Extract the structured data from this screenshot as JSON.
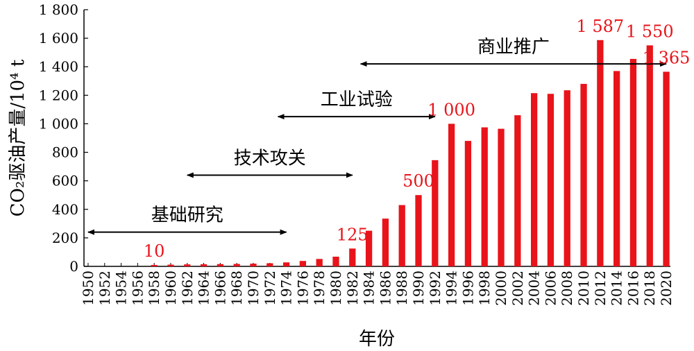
{
  "chart_data": {
    "type": "bar",
    "xlabel": "年份",
    "ylabel": "CO₂驱油产量/10⁴ t",
    "ylim": [
      0,
      1800
    ],
    "yticks": [
      0,
      200,
      400,
      600,
      800,
      1000,
      1200,
      1400,
      1600,
      1800
    ],
    "ytick_labels": [
      "0",
      "200",
      "400",
      "600",
      "800",
      "1 000",
      "1 200",
      "1 400",
      "1 600",
      "1 800"
    ],
    "categories": [
      "1950",
      "1951",
      "1952",
      "1953",
      "1954",
      "1955",
      "1956",
      "1957",
      "1958",
      "1959",
      "1960",
      "1961",
      "1962",
      "1963",
      "1964",
      "1965",
      "1966",
      "1967",
      "1968",
      "1969",
      "1970",
      "1971",
      "1972",
      "1973",
      "1974",
      "1975",
      "1976",
      "1977",
      "1978",
      "1979",
      "1980",
      "1981",
      "1982",
      "1983",
      "1984",
      "1985",
      "1986",
      "1987",
      "1988",
      "1989",
      "1990",
      "1991",
      "1992",
      "1993",
      "1994",
      "1995",
      "1996",
      "1997",
      "1998",
      "1999",
      "2000",
      "2001",
      "2002",
      "2003",
      "2004",
      "2005",
      "2006",
      "2007",
      "2008",
      "2009",
      "2010",
      "2011",
      "2012",
      "2013",
      "2014",
      "2015",
      "2016",
      "2017",
      "2018",
      "2019",
      "2020"
    ],
    "xtick_labels": [
      "1950",
      "1952",
      "1954",
      "1956",
      "1958",
      "1960",
      "1962",
      "1964",
      "1966",
      "1968",
      "1970",
      "1972",
      "1974",
      "1976",
      "1978",
      "1980",
      "1982",
      "1984",
      "1986",
      "1988",
      "1990",
      "1992",
      "1994",
      "1996",
      "1998",
      "2000",
      "2002",
      "2004",
      "2006",
      "2008",
      "2010",
      "2012",
      "2014",
      "2016",
      "2018",
      "2020"
    ],
    "bars": [
      {
        "year": "1958",
        "value": 10
      },
      {
        "year": "1960",
        "value": 12
      },
      {
        "year": "1962",
        "value": 14
      },
      {
        "year": "1964",
        "value": 15
      },
      {
        "year": "1966",
        "value": 16
      },
      {
        "year": "1968",
        "value": 17
      },
      {
        "year": "1970",
        "value": 19
      },
      {
        "year": "1972",
        "value": 22
      },
      {
        "year": "1974",
        "value": 28
      },
      {
        "year": "1976",
        "value": 38
      },
      {
        "year": "1978",
        "value": 52
      },
      {
        "year": "1980",
        "value": 68
      },
      {
        "year": "1982",
        "value": 125
      },
      {
        "year": "1984",
        "value": 250
      },
      {
        "year": "1986",
        "value": 335
      },
      {
        "year": "1988",
        "value": 430
      },
      {
        "year": "1990",
        "value": 500
      },
      {
        "year": "1992",
        "value": 745
      },
      {
        "year": "1994",
        "value": 1000
      },
      {
        "year": "1996",
        "value": 880
      },
      {
        "year": "1998",
        "value": 975
      },
      {
        "year": "2000",
        "value": 965
      },
      {
        "year": "2002",
        "value": 1060
      },
      {
        "year": "2004",
        "value": 1215
      },
      {
        "year": "2006",
        "value": 1210
      },
      {
        "year": "2008",
        "value": 1235
      },
      {
        "year": "2010",
        "value": 1280
      },
      {
        "year": "2012",
        "value": 1587
      },
      {
        "year": "2014",
        "value": 1370
      },
      {
        "year": "2016",
        "value": 1455
      },
      {
        "year": "2018",
        "value": 1550
      },
      {
        "year": "2020",
        "value": 1365
      }
    ],
    "data_labels": [
      {
        "year": "1958",
        "text": "10"
      },
      {
        "year": "1982",
        "text": "125"
      },
      {
        "year": "1990",
        "text": "500"
      },
      {
        "year": "1994",
        "text": "1 000"
      },
      {
        "year": "2012",
        "text": "1 587"
      },
      {
        "year": "2018",
        "text": "1 550"
      },
      {
        "year": "2020",
        "text": "1 365"
      }
    ],
    "phases": [
      {
        "label": "基础研究",
        "start": "1950",
        "end": "1974",
        "level": 240
      },
      {
        "label": "技术攻关",
        "start": "1962",
        "end": "1982",
        "level": 640
      },
      {
        "label": "工业试验",
        "start": "1973",
        "end": "1992",
        "level": 1050
      },
      {
        "label": "商业推广",
        "start": "1983",
        "end": "2020",
        "level": 1420
      }
    ],
    "bar_color": "#e8141a",
    "label_color": "#e8141a",
    "arrow_color": "#000000"
  }
}
